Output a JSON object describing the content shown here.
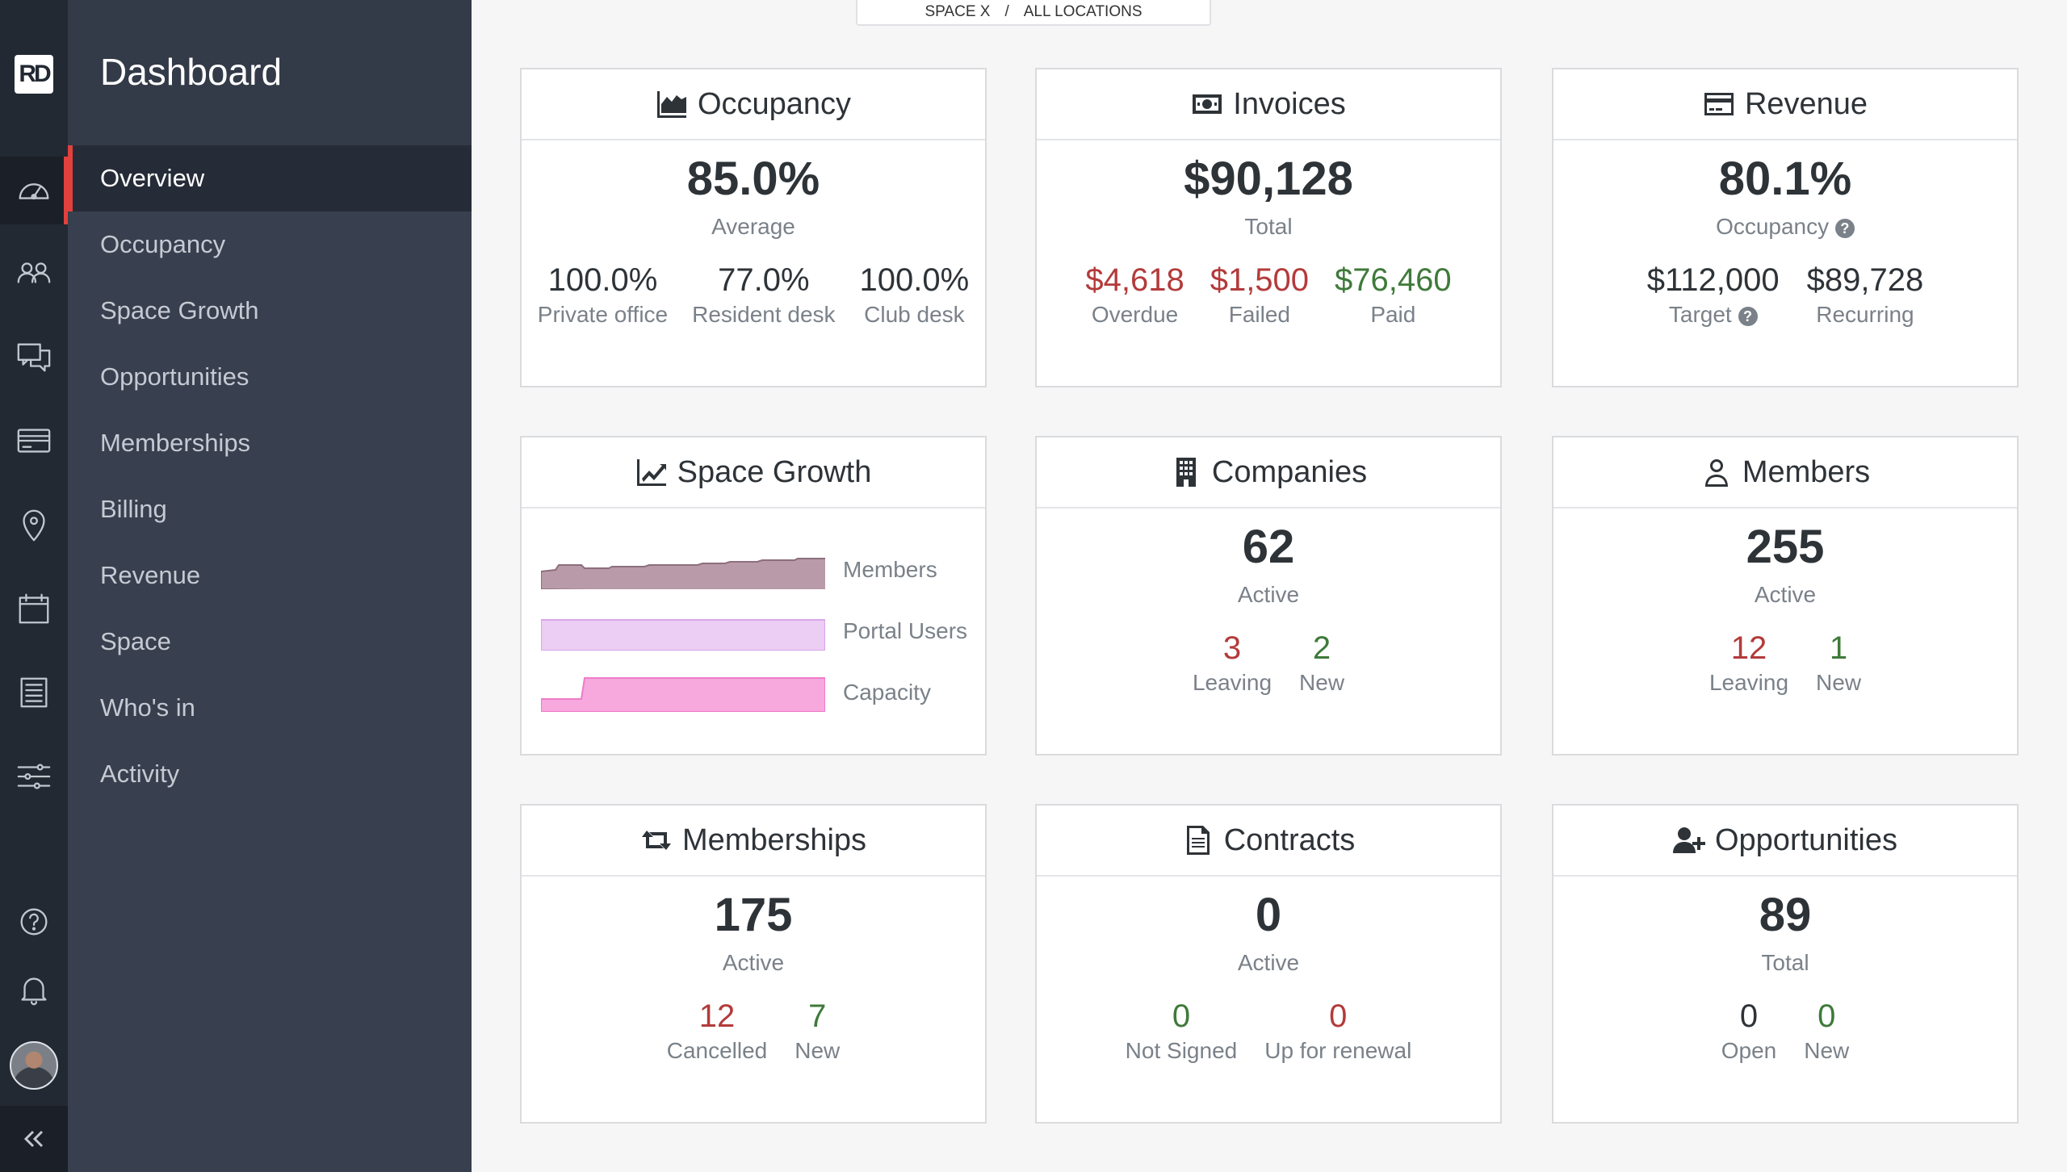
{
  "app": {
    "logo_text": "RD",
    "title": "Dashboard"
  },
  "breadcrumb": {
    "space": "SPACE X",
    "separator": "/",
    "location": "ALL LOCATIONS"
  },
  "rail_icons": [
    "dashboard-gauge-icon",
    "members-icon",
    "chat-icon",
    "card-icon",
    "location-pin-icon",
    "calendar-icon",
    "list-icon",
    "sliders-icon",
    "help-icon",
    "bell-icon",
    "avatar",
    "collapse-icon"
  ],
  "nav": [
    {
      "label": "Overview",
      "active": true
    },
    {
      "label": "Occupancy"
    },
    {
      "label": "Space Growth"
    },
    {
      "label": "Opportunities"
    },
    {
      "label": "Memberships"
    },
    {
      "label": "Billing"
    },
    {
      "label": "Revenue"
    },
    {
      "label": "Space"
    },
    {
      "label": "Who's in"
    },
    {
      "label": "Activity"
    }
  ],
  "colors": {
    "accent": "#e0413d",
    "negative": "#b33b3b",
    "positive": "#3f7a3a",
    "members_area": "#b89aa8",
    "portal_area": "#eccdf4",
    "capacity_area": "#f7a8dc"
  },
  "cards": {
    "occupancy": {
      "title": "Occupancy",
      "value": "85.0%",
      "caption": "Average",
      "stats": [
        {
          "value": "100.0%",
          "label": "Private office"
        },
        {
          "value": "77.0%",
          "label": "Resident desk"
        },
        {
          "value": "100.0%",
          "label": "Club desk"
        }
      ]
    },
    "invoices": {
      "title": "Invoices",
      "value": "$90,128",
      "caption": "Total",
      "stats": [
        {
          "value": "$4,618",
          "label": "Overdue"
        },
        {
          "value": "$1,500",
          "label": "Failed"
        },
        {
          "value": "$76,460",
          "label": "Paid"
        }
      ]
    },
    "revenue": {
      "title": "Revenue",
      "value": "80.1%",
      "caption": "Occupancy",
      "stats": [
        {
          "value": "$112,000",
          "label": "Target"
        },
        {
          "value": "$89,728",
          "label": "Recurring"
        }
      ]
    },
    "space_growth": {
      "title": "Space Growth",
      "series": [
        {
          "label": "Members"
        },
        {
          "label": "Portal Users"
        },
        {
          "label": "Capacity"
        }
      ]
    },
    "companies": {
      "title": "Companies",
      "value": "62",
      "caption": "Active",
      "stats": [
        {
          "value": "3",
          "label": "Leaving"
        },
        {
          "value": "2",
          "label": "New"
        }
      ]
    },
    "members": {
      "title": "Members",
      "value": "255",
      "caption": "Active",
      "stats": [
        {
          "value": "12",
          "label": "Leaving"
        },
        {
          "value": "1",
          "label": "New"
        }
      ]
    },
    "memberships": {
      "title": "Memberships",
      "value": "175",
      "caption": "Active",
      "stats": [
        {
          "value": "12",
          "label": "Cancelled"
        },
        {
          "value": "7",
          "label": "New"
        }
      ]
    },
    "contracts": {
      "title": "Contracts",
      "value": "0",
      "caption": "Active",
      "stats": [
        {
          "value": "0",
          "label": "Not Signed"
        },
        {
          "value": "0",
          "label": "Up for renewal"
        }
      ]
    },
    "opportunities": {
      "title": "Opportunities",
      "value": "89",
      "caption": "Total",
      "stats": [
        {
          "value": "0",
          "label": "Open"
        },
        {
          "value": "0",
          "label": "New"
        }
      ]
    }
  }
}
